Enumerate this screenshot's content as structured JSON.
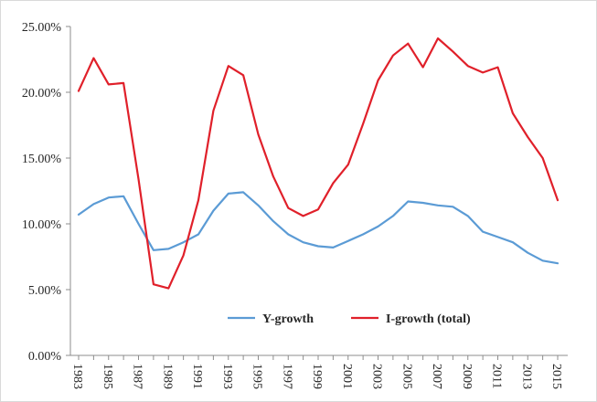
{
  "chart_data": {
    "type": "line",
    "title": "",
    "xlabel": "",
    "ylabel": "",
    "ylim": [
      0,
      25
    ],
    "y_tick_values": [
      0,
      5,
      10,
      15,
      20,
      25
    ],
    "y_tick_labels": [
      "0.00%",
      "5.00%",
      "10.00%",
      "15.00%",
      "20.00%",
      "25.00%"
    ],
    "x": [
      1983,
      1984,
      1985,
      1986,
      1987,
      1988,
      1989,
      1990,
      1991,
      1992,
      1993,
      1994,
      1995,
      1996,
      1997,
      1998,
      1999,
      2000,
      2001,
      2002,
      2003,
      2004,
      2005,
      2006,
      2007,
      2008,
      2009,
      2010,
      2011,
      2012,
      2013,
      2014,
      2015
    ],
    "x_tick_labels": [
      "1983",
      "1985",
      "1987",
      "1989",
      "1991",
      "1993",
      "1995",
      "1997",
      "1999",
      "2001",
      "2003",
      "2005",
      "2007",
      "2009",
      "2011",
      "2013",
      "2015"
    ],
    "grid": false,
    "legend_position": "bottom-center",
    "series": [
      {
        "name": "Y-growth",
        "color": "#5b9bd5",
        "values": [
          10.7,
          11.5,
          12.0,
          12.1,
          10.0,
          8.0,
          8.1,
          8.6,
          9.2,
          11.0,
          12.3,
          12.4,
          11.4,
          10.2,
          9.2,
          8.6,
          8.3,
          8.2,
          8.7,
          9.2,
          9.8,
          10.6,
          11.7,
          11.6,
          11.4,
          11.3,
          10.6,
          9.4,
          9.0,
          8.6,
          7.8,
          7.2,
          7.0
        ]
      },
      {
        "name": "I-growth (total)",
        "color": "#e0202a",
        "values": [
          20.1,
          22.6,
          20.6,
          20.7,
          13.4,
          5.4,
          5.1,
          7.6,
          11.8,
          18.6,
          22.0,
          21.3,
          16.8,
          13.6,
          11.2,
          10.6,
          11.1,
          13.1,
          14.5,
          17.6,
          20.9,
          22.8,
          23.7,
          21.9,
          24.1,
          23.1,
          22.0,
          21.5,
          21.9,
          18.4,
          16.6,
          15.0,
          11.8
        ]
      }
    ]
  }
}
